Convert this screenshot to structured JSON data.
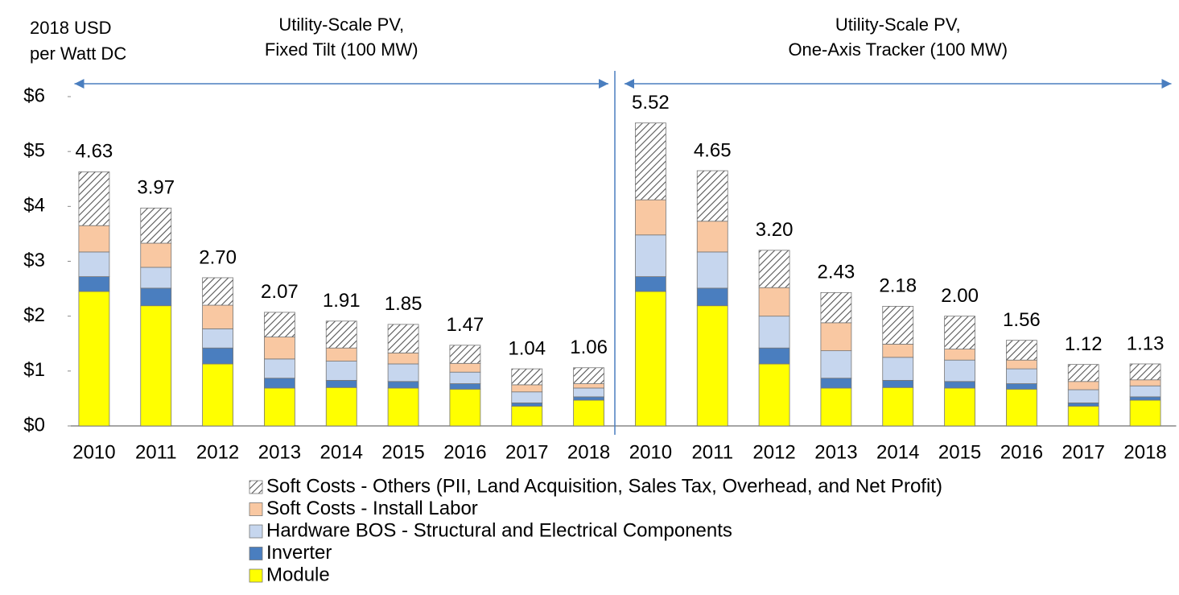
{
  "chart_data": {
    "type": "stacked_bar",
    "y_label": [
      "2018 USD",
      "per Watt DC"
    ],
    "groups": [
      {
        "label": [
          "Utility-Scale PV,",
          "Fixed Tilt (100 MW)"
        ]
      },
      {
        "label": [
          "Utility-Scale PV,",
          "One-Axis Tracker (100 MW)"
        ]
      }
    ],
    "categories": [
      "2010",
      "2011",
      "2012",
      "2013",
      "2014",
      "2015",
      "2016",
      "2017",
      "2018",
      "2010",
      "2011",
      "2012",
      "2013",
      "2014",
      "2015",
      "2016",
      "2017",
      "2018"
    ],
    "series": [
      {
        "name": "Module",
        "color": "#ffff00",
        "values": [
          2.45,
          2.19,
          1.13,
          0.69,
          0.7,
          0.69,
          0.67,
          0.36,
          0.47,
          2.45,
          2.19,
          1.13,
          0.69,
          0.7,
          0.69,
          0.67,
          0.36,
          0.47
        ]
      },
      {
        "name": "Inverter",
        "color": "#4a7ebf",
        "values": [
          0.27,
          0.32,
          0.29,
          0.18,
          0.13,
          0.12,
          0.1,
          0.06,
          0.06,
          0.27,
          0.32,
          0.29,
          0.18,
          0.13,
          0.12,
          0.1,
          0.06,
          0.06
        ]
      },
      {
        "name": "Hardware BOS - Structural and Electrical Components",
        "color": "#c6d6ee",
        "values": [
          0.45,
          0.38,
          0.35,
          0.35,
          0.35,
          0.32,
          0.21,
          0.2,
          0.16,
          0.76,
          0.66,
          0.58,
          0.5,
          0.42,
          0.39,
          0.27,
          0.24,
          0.2
        ]
      },
      {
        "name": "Soft Costs - Install Labor",
        "color": "#f9c8a2",
        "values": [
          0.48,
          0.44,
          0.43,
          0.4,
          0.24,
          0.2,
          0.16,
          0.13,
          0.08,
          0.64,
          0.56,
          0.52,
          0.51,
          0.24,
          0.2,
          0.16,
          0.15,
          0.11
        ]
      },
      {
        "name": "Soft Costs - Others (PII, Land Acquisition, Sales Tax, Overhead, and Net Profit)",
        "color": "#555555",
        "pattern": "hatch",
        "values": [
          0.98,
          0.64,
          0.5,
          0.45,
          0.49,
          0.52,
          0.33,
          0.29,
          0.29,
          1.4,
          0.92,
          0.68,
          0.55,
          0.69,
          0.6,
          0.36,
          0.31,
          0.29
        ]
      }
    ],
    "totals": [
      4.63,
      3.97,
      2.7,
      2.07,
      1.91,
      1.85,
      1.47,
      1.04,
      1.06,
      5.52,
      4.65,
      3.2,
      2.43,
      2.18,
      2.0,
      1.56,
      1.12,
      1.13
    ],
    "total_labels": [
      "4.63",
      "3.97",
      "2.70",
      "2.07",
      "1.91",
      "1.85",
      "1.47",
      "1.04",
      "1.06",
      "5.52",
      "4.65",
      "3.20",
      "2.43",
      "2.18",
      "2.00",
      "1.56",
      "1.12",
      "1.13"
    ],
    "ylim": [
      0,
      6
    ],
    "yticks": [
      {
        "value": 0,
        "label": "$0"
      },
      {
        "value": 1,
        "label": "$1"
      },
      {
        "value": 2,
        "label": "$2"
      },
      {
        "value": 3,
        "label": "$3"
      },
      {
        "value": 4,
        "label": "$4"
      },
      {
        "value": 5,
        "label": "$5"
      },
      {
        "value": 6,
        "label": "$6"
      }
    ],
    "grid": false
  }
}
